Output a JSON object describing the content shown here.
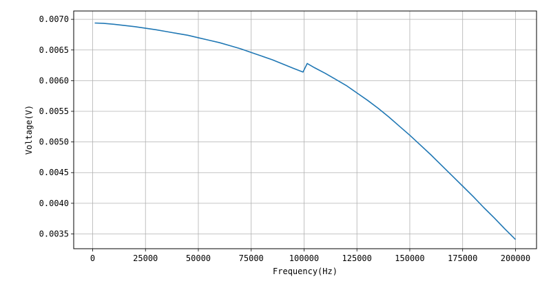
{
  "chart_data": {
    "type": "line",
    "title": "",
    "xlabel": "Frequency(Hz)",
    "ylabel": "Voltage(V)",
    "xlim": [
      -8950,
      209950
    ],
    "ylim": [
      0.003259,
      0.007136
    ],
    "grid": true,
    "x_ticks": [
      0,
      25000,
      50000,
      75000,
      100000,
      125000,
      150000,
      175000,
      200000
    ],
    "x_tick_labels": [
      "0",
      "25000",
      "50000",
      "75000",
      "100000",
      "125000",
      "150000",
      "175000",
      "200000"
    ],
    "y_ticks": [
      0.0035,
      0.004,
      0.0045,
      0.005,
      0.0055,
      0.006,
      0.0065,
      0.007
    ],
    "y_tick_labels": [
      "0.0035",
      "0.0040",
      "0.0045",
      "0.0050",
      "0.0055",
      "0.0060",
      "0.0065",
      "0.0070"
    ],
    "series": [
      {
        "color": "#1f77b4",
        "x": [
          1000,
          5000,
          10000,
          15000,
          20000,
          25000,
          30000,
          35000,
          40000,
          45000,
          50000,
          55000,
          60000,
          65000,
          70000,
          75000,
          80000,
          85000,
          90000,
          95000,
          99500,
          101500,
          105000,
          110000,
          115000,
          120000,
          125000,
          130000,
          135000,
          140000,
          145000,
          150000,
          155000,
          160000,
          165000,
          170000,
          175000,
          180000,
          185000,
          190000,
          195000,
          200000
        ],
        "y": [
          0.00694,
          0.006935,
          0.00692,
          0.0069,
          0.00688,
          0.006855,
          0.00683,
          0.0068,
          0.00677,
          0.00674,
          0.0067,
          0.00666,
          0.00662,
          0.00657,
          0.00652,
          0.00646,
          0.0064,
          0.00634,
          0.00627,
          0.0062,
          0.00614,
          0.00628,
          0.00621,
          0.00612,
          0.00602,
          0.00592,
          0.0058,
          0.00568,
          0.00555,
          0.00541,
          0.00526,
          0.00511,
          0.00495,
          0.00479,
          0.00462,
          0.00445,
          0.00428,
          0.00411,
          0.00393,
          0.00376,
          0.00358,
          0.00341
        ]
      }
    ]
  }
}
